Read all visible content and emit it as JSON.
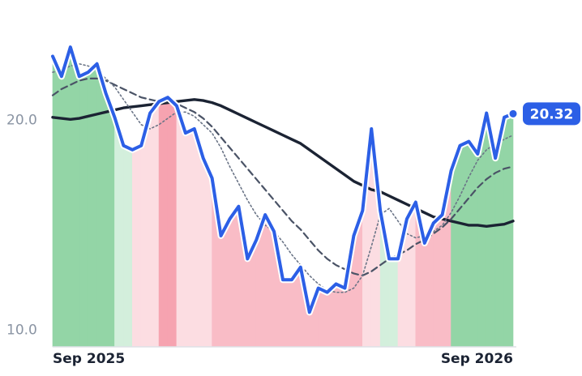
{
  "chart_data": {
    "type": "line",
    "categories": [
      "Sep 2025",
      null,
      null,
      null,
      null,
      null,
      null,
      null,
      null,
      null,
      null,
      null,
      null,
      null,
      null,
      null,
      null,
      null,
      null,
      null,
      null,
      null,
      null,
      null,
      null,
      null,
      null,
      null,
      null,
      null,
      null,
      null,
      null,
      null,
      null,
      null,
      null,
      null,
      null,
      null,
      null,
      null,
      null,
      null,
      null,
      null,
      null,
      null,
      null,
      null,
      null,
      null,
      "Sep 2026"
    ],
    "series": [
      {
        "color": "#2c5fe6",
        "style": "solid",
        "width": 4,
        "halo": true,
        "area_colors": [
          "#93d5a6",
          "#93d5a6",
          "#93d5a6",
          "#93d5a6",
          "#93d5a6",
          "#93d5a6",
          "#93d5a6",
          "#d3efdc",
          "#d3efdc",
          "#fcdde2",
          "#fcdde2",
          "#fcdde2",
          "#f6a3b0",
          "#f6a3b0",
          "#fcdde2",
          "#fcdde2",
          "#fcdde2",
          "#fcdde2",
          "#f9bcc6",
          "#f9bcc6",
          "#f9bcc6",
          "#f9bcc6",
          "#f9bcc6",
          "#f9bcc6",
          "#f9bcc6",
          "#f9bcc6",
          "#f9bcc6",
          "#f9bcc6",
          "#f9bcc6",
          "#f9bcc6",
          "#f9bcc6",
          "#f9bcc6",
          "#f9bcc6",
          "#f9bcc6",
          "#f9bcc6",
          "#fcdde2",
          "#fcdde2",
          "#d3efdc",
          "#d3efdc",
          "#fcdde2",
          "#fcdde2",
          "#f9bcc6",
          "#f9bcc6",
          "#f9bcc6",
          "#f9bcc6",
          "#93d5a6",
          "#93d5a6",
          "#93d5a6",
          "#93d5a6",
          "#93d5a6",
          "#93d5a6",
          "#93d5a6",
          "#93d5a6"
        ],
        "values": [
          23.06,
          22.1,
          23.5,
          22.1,
          22.3,
          22.7,
          21.3,
          20.15,
          18.8,
          18.6,
          18.8,
          20.35,
          20.9,
          21.1,
          20.7,
          19.4,
          19.6,
          18.2,
          17.25,
          14.5,
          15.3,
          15.9,
          13.4,
          14.3,
          15.5,
          14.7,
          12.4,
          12.4,
          13.0,
          10.85,
          12.0,
          11.8,
          12.2,
          12.0,
          14.5,
          15.7,
          19.6,
          15.7,
          13.4,
          13.4,
          15.3,
          16.1,
          14.15,
          15.1,
          15.5,
          17.6,
          18.8,
          19.0,
          18.4,
          20.35,
          18.2,
          20.15,
          20.32
        ]
      },
      {
        "color": "#6b7587",
        "style": "dotted",
        "width": 1.6,
        "values": [
          22.3,
          22.4,
          22.6,
          22.7,
          22.6,
          22.4,
          22.0,
          21.6,
          21.0,
          20.4,
          19.8,
          19.6,
          19.8,
          20.1,
          20.4,
          20.4,
          20.2,
          19.8,
          19.4,
          18.7,
          17.8,
          17.0,
          16.2,
          15.5,
          15.0,
          14.7,
          14.2,
          13.6,
          13.1,
          12.6,
          12.2,
          11.9,
          11.8,
          11.8,
          12.0,
          12.6,
          14.0,
          15.5,
          15.8,
          15.2,
          14.6,
          14.4,
          14.5,
          14.7,
          15.0,
          15.6,
          16.4,
          17.3,
          18.1,
          18.6,
          18.9,
          19.1,
          19.3
        ]
      },
      {
        "color": "#4a5366",
        "style": "dashed",
        "width": 2.2,
        "values": [
          21.2,
          21.5,
          21.7,
          21.9,
          22.0,
          22.0,
          21.9,
          21.7,
          21.5,
          21.3,
          21.1,
          21.0,
          20.9,
          20.9,
          20.8,
          20.6,
          20.4,
          20.1,
          19.7,
          19.2,
          18.7,
          18.2,
          17.7,
          17.2,
          16.7,
          16.2,
          15.7,
          15.2,
          14.8,
          14.3,
          13.8,
          13.4,
          13.1,
          12.9,
          12.7,
          12.6,
          12.8,
          13.1,
          13.4,
          13.6,
          13.8,
          14.1,
          14.3,
          14.6,
          14.9,
          15.3,
          15.8,
          16.3,
          16.8,
          17.2,
          17.5,
          17.7,
          17.8
        ]
      },
      {
        "color": "#1b2333",
        "style": "solid",
        "width": 3.4,
        "values": [
          20.15,
          20.1,
          20.05,
          20.1,
          20.2,
          20.3,
          20.4,
          20.5,
          20.6,
          20.65,
          20.7,
          20.75,
          20.8,
          20.85,
          20.9,
          20.95,
          21.0,
          20.95,
          20.85,
          20.7,
          20.5,
          20.3,
          20.1,
          19.9,
          19.7,
          19.5,
          19.3,
          19.1,
          18.9,
          18.6,
          18.3,
          18.0,
          17.7,
          17.4,
          17.1,
          16.9,
          16.7,
          16.6,
          16.4,
          16.2,
          16.0,
          15.8,
          15.6,
          15.4,
          15.3,
          15.2,
          15.1,
          15.0,
          15.0,
          14.95,
          15.0,
          15.05,
          15.2
        ]
      }
    ],
    "ylim": [
      9.2,
      24.2
    ],
    "yticks": [
      {
        "value": 10,
        "label": "10.0"
      },
      {
        "value": 20,
        "label": "20.0"
      }
    ],
    "last_value_badge": true
  }
}
